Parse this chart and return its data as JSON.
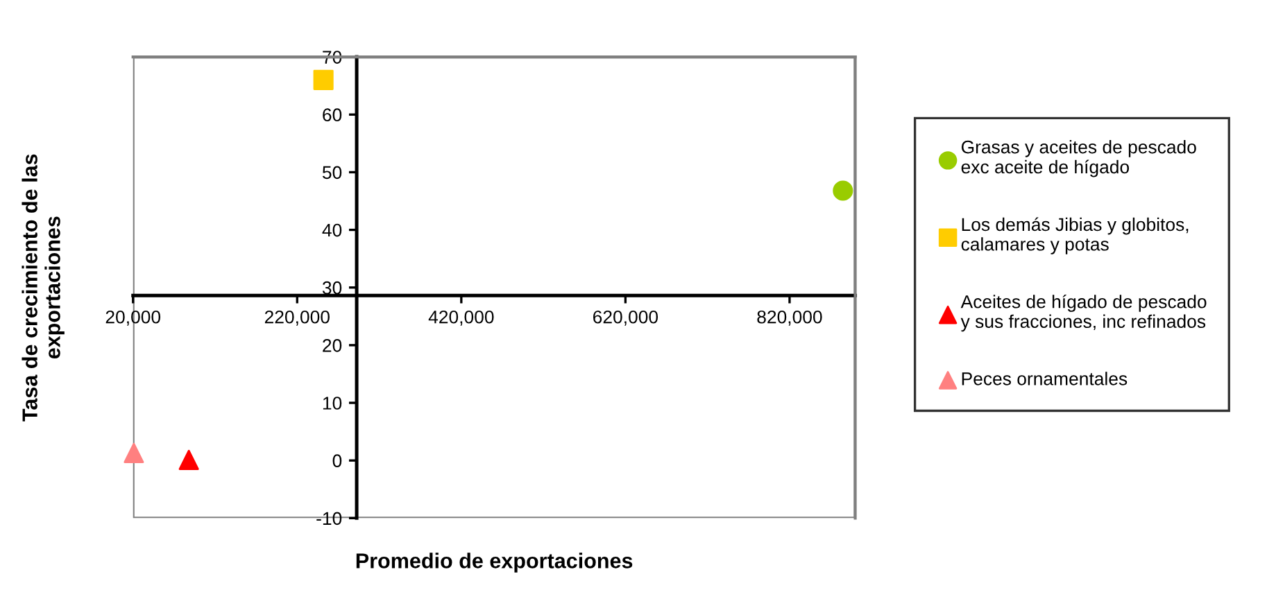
{
  "chart_data": {
    "type": "scatter",
    "xlabel": "Promedio de exportaciones",
    "ylabel": "Tasa de crecimiento de las\nexportaciones",
    "xlim": [
      20000,
      900000
    ],
    "xticks": [
      {
        "value": 20000,
        "label": "20,000"
      },
      {
        "value": 220000,
        "label": "220,000"
      },
      {
        "value": 420000,
        "label": "420,000"
      },
      {
        "value": 620000,
        "label": "620,000"
      },
      {
        "value": 820000,
        "label": "820,000"
      }
    ],
    "ylim": [
      -10,
      70
    ],
    "yticks": [
      -10,
      0,
      10,
      20,
      30,
      40,
      50,
      60,
      70
    ],
    "grid": false,
    "legend": "right",
    "series": [
      {
        "name": "Grasas y aceites de pescado\nexc aceite de hígado",
        "color": "#99cc00",
        "marker": "circle",
        "x": [
          885000
        ],
        "values": [
          46.8
        ]
      },
      {
        "name": "Los demás Jibias y globitos,\ncalamares y potas",
        "color": "#ffcc00",
        "marker": "square",
        "x": [
          252000
        ],
        "values": [
          66
        ]
      },
      {
        "name": "Aceites de hígado de pescado\ny sus fracciones, inc refinados",
        "color": "#ff0000",
        "marker": "triangle",
        "x": [
          88000
        ],
        "values": [
          0.1
        ]
      },
      {
        "name": "Peces ornamentales",
        "color": "#ff8080",
        "marker": "triangle",
        "x": [
          21000
        ],
        "values": [
          1.3
        ]
      }
    ]
  }
}
